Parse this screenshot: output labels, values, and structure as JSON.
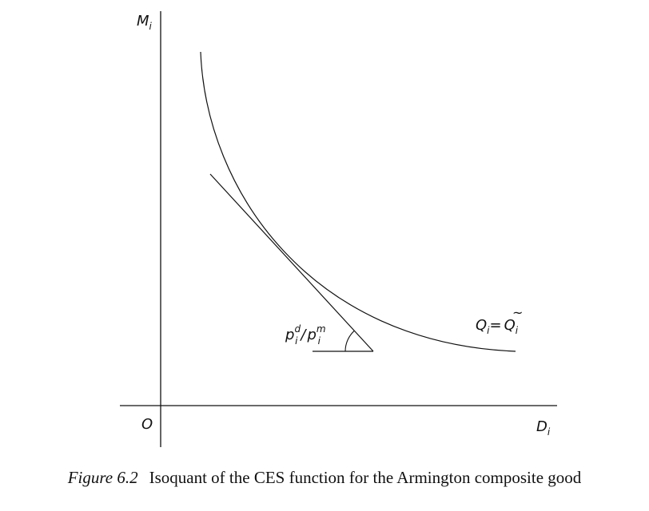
{
  "axes": {
    "y_label_main": "M",
    "y_label_sub": "i",
    "x_label_main": "D",
    "x_label_sub": "i",
    "origin_label": "O"
  },
  "curve_label": {
    "q": "Q",
    "q_sub": "i",
    "eq": "=",
    "qtilde": "Q",
    "tilde": "~",
    "qtilde_sub": "i"
  },
  "angle_label": {
    "p1": "p",
    "p1_sup": "d",
    "p1_sub": "i",
    "slash": "/",
    "p2": "p",
    "p2_sup": "m",
    "p2_sub": "i"
  },
  "caption": {
    "number": "Figure 6.2",
    "text": "Isoquant of the CES function for the Armington composite good"
  },
  "colors": {
    "ink": "#111111",
    "background": "#ffffff"
  }
}
